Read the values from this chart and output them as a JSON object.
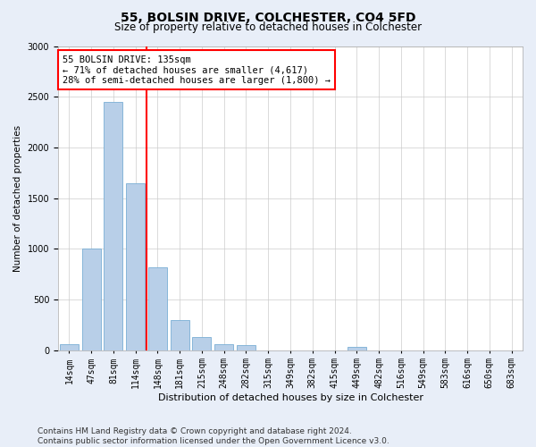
{
  "title": "55, BOLSIN DRIVE, COLCHESTER, CO4 5FD",
  "subtitle": "Size of property relative to detached houses in Colchester",
  "xlabel": "Distribution of detached houses by size in Colchester",
  "ylabel": "Number of detached properties",
  "categories": [
    "14sqm",
    "47sqm",
    "81sqm",
    "114sqm",
    "148sqm",
    "181sqm",
    "215sqm",
    "248sqm",
    "282sqm",
    "315sqm",
    "349sqm",
    "382sqm",
    "415sqm",
    "449sqm",
    "482sqm",
    "516sqm",
    "549sqm",
    "583sqm",
    "616sqm",
    "650sqm",
    "683sqm"
  ],
  "values": [
    60,
    1000,
    2450,
    1650,
    820,
    300,
    130,
    55,
    45,
    0,
    0,
    0,
    0,
    35,
    0,
    0,
    0,
    0,
    0,
    0,
    0
  ],
  "bar_color": "#b8cfe8",
  "bar_edge_color": "#7aaed4",
  "red_line_x": 3.5,
  "annotation_line1": "55 BOLSIN DRIVE: 135sqm",
  "annotation_line2": "← 71% of detached houses are smaller (4,617)",
  "annotation_line3": "28% of semi-detached houses are larger (1,800) →",
  "annotation_box_color": "white",
  "annotation_box_edge_color": "red",
  "red_line_color": "red",
  "ylim": [
    0,
    3000
  ],
  "yticks": [
    0,
    500,
    1000,
    1500,
    2000,
    2500,
    3000
  ],
  "footer_line1": "Contains HM Land Registry data © Crown copyright and database right 2024.",
  "footer_line2": "Contains public sector information licensed under the Open Government Licence v3.0.",
  "background_color": "#e8eef8",
  "plot_background_color": "#ffffff",
  "grid_color": "#cccccc",
  "title_fontsize": 10,
  "subtitle_fontsize": 8.5,
  "xlabel_fontsize": 8,
  "ylabel_fontsize": 7.5,
  "tick_fontsize": 7,
  "annotation_fontsize": 7.5,
  "footer_fontsize": 6.5
}
